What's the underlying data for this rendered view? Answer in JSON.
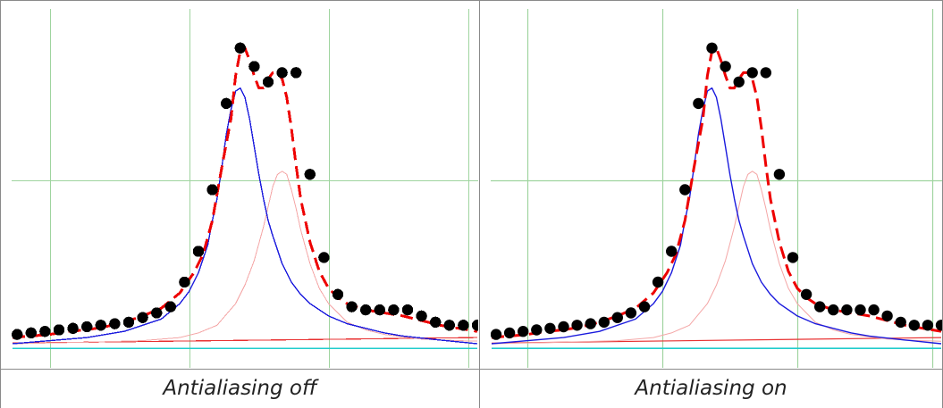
{
  "panels": [
    {
      "caption": "Antialiasing off",
      "antialias": false
    },
    {
      "caption": "Antialiasing on",
      "antialias": true
    }
  ],
  "colors": {
    "grid": "#9fd49f",
    "data_points": "#000000",
    "fit_total": "#ee0000",
    "component_1": "#1a1add",
    "component_2": "#f4a6a6",
    "baseline_1": "#e83030",
    "baseline_2": "#22cccc"
  },
  "chart_data": {
    "type": "scatter",
    "x_range": [
      0,
      50
    ],
    "y_range": [
      0,
      100
    ],
    "grid": true,
    "gridlines_x": [
      4,
      19,
      34,
      49
    ],
    "gridlines_y": [
      53
    ],
    "series": [
      {
        "kind": "points",
        "x": [
          0.5,
          2,
          3.5,
          5,
          6.5,
          8,
          9.5,
          11,
          12.5,
          14,
          15.5,
          17,
          18.5,
          20,
          21.5,
          23,
          24.5,
          26,
          27.5,
          29,
          30.5,
          32,
          33.5,
          35,
          36.5,
          38,
          39.5,
          41,
          42.5,
          44,
          45.5,
          47,
          48.5,
          50
        ],
        "y": [
          3,
          3.5,
          4,
          4.5,
          5,
          5.5,
          6,
          6.5,
          7,
          8.5,
          10,
          12,
          20,
          30,
          50,
          78,
          96,
          90,
          85,
          88,
          88,
          55,
          28,
          16,
          12,
          11,
          11,
          11,
          11,
          9,
          7,
          6,
          6,
          6
        ]
      },
      {
        "kind": "line",
        "style": "dashed",
        "x": [
          0,
          2,
          4,
          6,
          8,
          10,
          12,
          14,
          16,
          18,
          19.5,
          20.5,
          21.5,
          22.5,
          23.5,
          24,
          24.5,
          25,
          25.5,
          26,
          26.5,
          27,
          27.5,
          28,
          28.5,
          29,
          29.5,
          30,
          30.5,
          31,
          32,
          33,
          34,
          35,
          36,
          37,
          38,
          40,
          42,
          44,
          46,
          48,
          50
        ],
        "y": [
          2,
          2.5,
          3,
          4,
          4.5,
          5.5,
          7,
          9,
          11.5,
          16.5,
          23,
          29,
          40,
          57,
          73,
          87,
          95,
          96,
          92,
          87,
          83,
          83,
          86,
          88,
          88,
          86,
          80,
          70,
          58,
          47,
          33,
          23.5,
          18,
          15,
          13,
          12,
          11,
          10,
          9,
          7.5,
          6,
          5,
          4
        ]
      },
      {
        "kind": "line",
        "style": "solid",
        "x": [
          0,
          4,
          8,
          12,
          16,
          18,
          19,
          20,
          21,
          21.5,
          22,
          22.5,
          23,
          23.5,
          24,
          24.5,
          25,
          25.5,
          26,
          26.5,
          27,
          27.5,
          28,
          29,
          30,
          31,
          32,
          34,
          36,
          38,
          40,
          42,
          46,
          50
        ],
        "y": [
          0,
          1,
          2,
          4,
          8,
          13,
          17,
          23,
          32,
          40,
          47,
          57,
          68,
          76,
          82,
          83,
          80,
          73,
          64,
          55,
          47,
          40,
          35,
          26,
          20,
          16,
          13,
          9,
          6.5,
          5,
          3.5,
          2.5,
          1.2,
          0
        ]
      },
      {
        "kind": "line",
        "style": "thin",
        "x": [
          0,
          8,
          14,
          18,
          20,
          22,
          24,
          25,
          26,
          27,
          28,
          28.5,
          29,
          29.5,
          30,
          30.5,
          31,
          32,
          33,
          34,
          36,
          38,
          40,
          44,
          48,
          50
        ],
        "y": [
          0,
          0.5,
          1,
          2,
          3.5,
          6,
          13,
          19,
          27,
          38,
          51,
          55,
          56,
          55,
          50,
          44,
          37,
          26,
          18,
          13,
          7,
          4.5,
          3,
          1.5,
          1,
          0.8
        ]
      },
      {
        "kind": "line",
        "style": "solid",
        "x": [
          0,
          50
        ],
        "y": [
          0.2,
          2
        ]
      },
      {
        "kind": "line",
        "style": "solid",
        "x": [
          0,
          50
        ],
        "y": [
          -1.5,
          -1.5
        ]
      }
    ]
  }
}
